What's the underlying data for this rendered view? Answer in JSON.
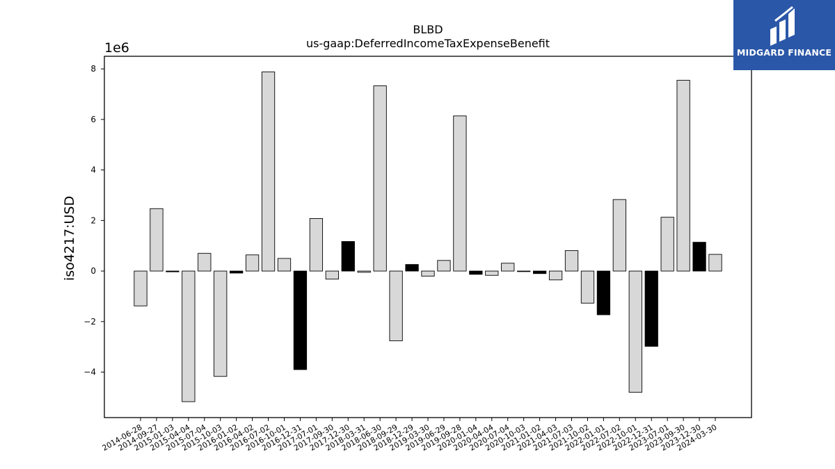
{
  "chart_data": {
    "type": "bar",
    "title": "BLBD",
    "subtitle": "us-gaap:DeferredIncomeTaxExpenseBenefit",
    "ylabel": "iso4217:USD",
    "xlabel": "",
    "scale_note": "1e6",
    "ylim": [
      -5.8,
      8.5
    ],
    "yticks": [
      -4,
      -2,
      0,
      2,
      4,
      6,
      8
    ],
    "ytick_labels": [
      "−4",
      "−2",
      "0",
      "2",
      "4",
      "6",
      "8"
    ],
    "grid": false,
    "categories": [
      "2014-06-28",
      "2014-09-27",
      "2015-01-03",
      "2015-04-04",
      "2015-07-04",
      "2015-10-03",
      "2016-01-02",
      "2016-04-02",
      "2016-07-02",
      "2016-10-01",
      "2016-12-31",
      "2017-07-01",
      "2017-09-30",
      "2017-12-30",
      "2018-03-31",
      "2018-06-30",
      "2018-09-29",
      "2018-12-29",
      "2019-03-30",
      "2019-06-29",
      "2019-09-28",
      "2020-01-04",
      "2020-04-04",
      "2020-07-04",
      "2020-10-03",
      "2021-01-02",
      "2021-04-03",
      "2021-07-03",
      "2021-10-02",
      "2022-01-01",
      "2022-07-02",
      "2022-10-01",
      "2022-12-31",
      "2023-07-01",
      "2023-09-30",
      "2023-12-30",
      "2024-03-30"
    ],
    "values": [
      -1.38,
      2.47,
      -0.03,
      -5.17,
      0.7,
      -4.17,
      -0.08,
      0.64,
      7.88,
      0.5,
      -3.9,
      2.08,
      -0.32,
      1.17,
      -0.05,
      7.33,
      -2.76,
      0.26,
      -0.2,
      0.42,
      6.14,
      -0.13,
      -0.17,
      0.31,
      -0.02,
      -0.1,
      -0.35,
      0.81,
      -1.27,
      -1.73,
      2.83,
      -4.8,
      -2.98,
      2.13,
      7.55,
      1.14,
      0.66
    ],
    "highlight": [
      false,
      false,
      true,
      false,
      false,
      false,
      true,
      false,
      false,
      false,
      true,
      false,
      false,
      true,
      false,
      false,
      false,
      true,
      false,
      false,
      false,
      true,
      false,
      false,
      false,
      true,
      false,
      false,
      false,
      true,
      false,
      false,
      true,
      false,
      false,
      true,
      false
    ],
    "colors": {
      "normal": "#d8d8d8",
      "highlight": "#000000",
      "edge": "#000000"
    }
  },
  "logo": {
    "text": "MIDGARD FINANCE",
    "background": "#2a57a8",
    "foreground": "#ffffff"
  }
}
